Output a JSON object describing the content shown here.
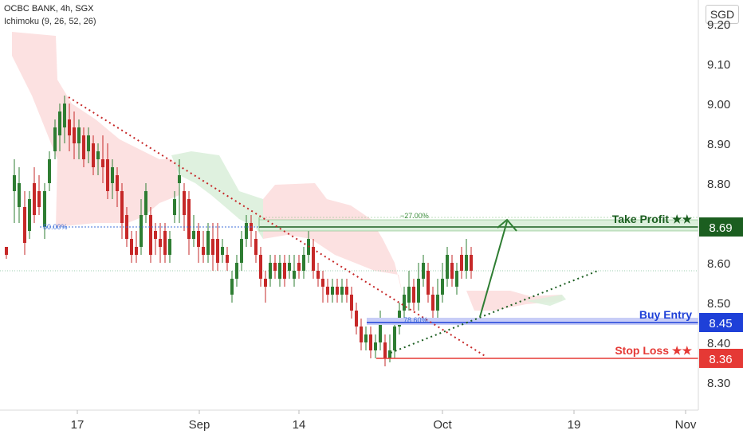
{
  "header": {
    "symbol": "OCBC BANK, 4h, SGX",
    "indicator": "Ichimoku (9, 26, 52, 26)",
    "currency_button": "SGD"
  },
  "colors": {
    "bull": "#2e7d32",
    "bear": "#c62828",
    "take_profit": "#1b5e20",
    "buy_entry": "#1e40d8",
    "stop_loss": "#e53935",
    "cloud_bear": "#fcdcdc",
    "cloud_bull": "#dcf0dc"
  },
  "annotations": {
    "take_profit": {
      "label": "Take Profit ★★",
      "price": "8.69"
    },
    "buy_entry": {
      "label": "Buy Entry",
      "price": "8.45"
    },
    "stop_loss": {
      "label": "Stop Loss ★★",
      "price": "8.36"
    },
    "fib_50": "50.00%",
    "fib_27": "−27.00%",
    "fib_786": "78.60%"
  },
  "chart_data": {
    "type": "candlestick",
    "y_ticks": [
      "9.20",
      "9.10",
      "9.00",
      "8.90",
      "8.80",
      "8.60",
      "8.50",
      "8.40",
      "8.30"
    ],
    "x_ticks": [
      "17",
      "Sep",
      "14",
      "Oct",
      "19",
      "Nov"
    ],
    "ylim": [
      8.2,
      9.22
    ],
    "levels": {
      "take_profit": 8.69,
      "buy_entry": 8.45,
      "stop_loss": 8.36,
      "fib_50": 8.69
    }
  }
}
